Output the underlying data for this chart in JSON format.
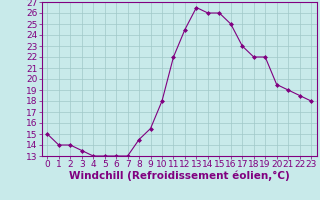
{
  "x": [
    0,
    1,
    2,
    3,
    4,
    5,
    6,
    7,
    8,
    9,
    10,
    11,
    12,
    13,
    14,
    15,
    16,
    17,
    18,
    19,
    20,
    21,
    22,
    23
  ],
  "y": [
    15.0,
    14.0,
    14.0,
    13.5,
    13.0,
    13.0,
    13.0,
    13.0,
    14.5,
    15.5,
    18.0,
    22.0,
    24.5,
    26.5,
    26.0,
    26.0,
    25.0,
    23.0,
    22.0,
    22.0,
    19.5,
    19.0,
    18.5,
    18.0
  ],
  "line_color": "#800080",
  "marker": "D",
  "marker_size": 2,
  "bg_color": "#c8eaea",
  "grid_color": "#a0c8c8",
  "xlabel": "Windchill (Refroidissement éolien,°C)",
  "xlim": [
    -0.5,
    23.5
  ],
  "ylim": [
    13,
    27
  ],
  "yticks": [
    13,
    14,
    15,
    16,
    17,
    18,
    19,
    20,
    21,
    22,
    23,
    24,
    25,
    26,
    27
  ],
  "xticks": [
    0,
    1,
    2,
    3,
    4,
    5,
    6,
    7,
    8,
    9,
    10,
    11,
    12,
    13,
    14,
    15,
    16,
    17,
    18,
    19,
    20,
    21,
    22,
    23
  ],
  "tick_label_size": 6.5,
  "xlabel_size": 7.5,
  "tick_color": "#800080",
  "label_color": "#800080",
  "spine_color": "#800080"
}
